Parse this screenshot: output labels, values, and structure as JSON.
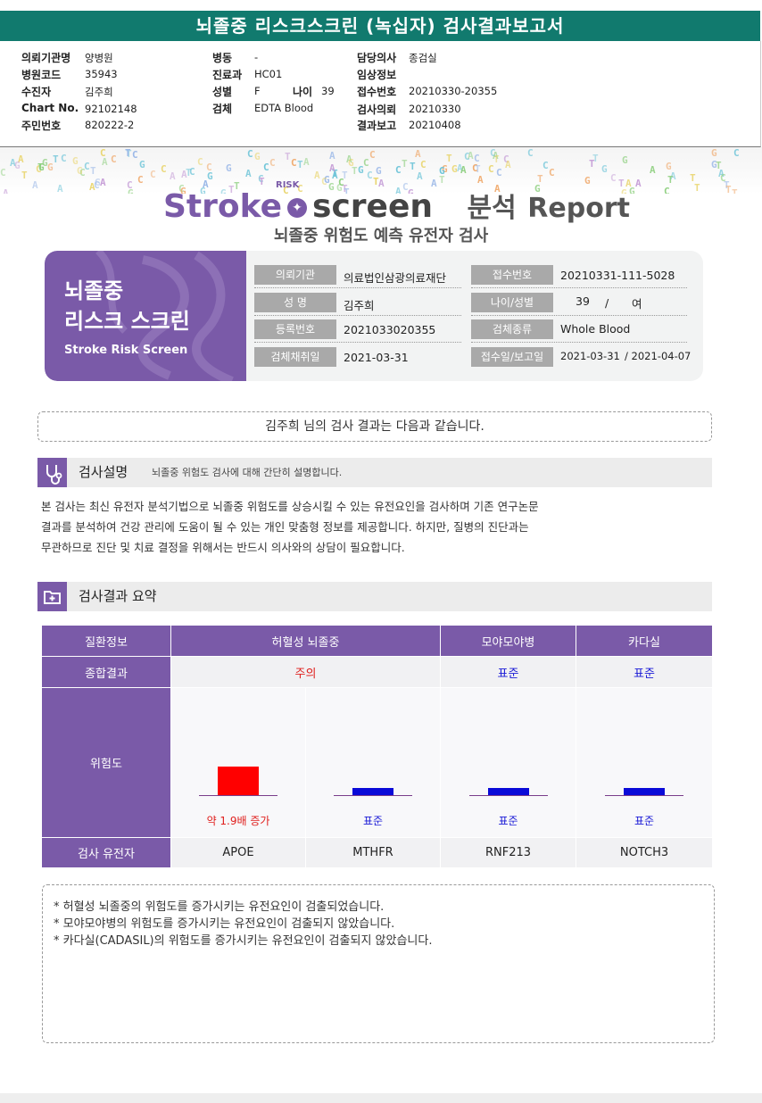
{
  "report_title": "뇌졸중 리스크스크린 (녹십자) 검사결과보고서",
  "header": {
    "col1": [
      {
        "label": "의뢰기관명",
        "value": "양병원"
      },
      {
        "label": "병원코드",
        "value": "35943"
      },
      {
        "label": "수진자",
        "value": "김주희"
      },
      {
        "label": "Chart No.",
        "value": "92102148"
      },
      {
        "label": "주민번호",
        "value": "820222-2"
      }
    ],
    "col2": [
      {
        "label": "병동",
        "value": "-"
      },
      {
        "label": "진료과",
        "value": "HC01"
      },
      {
        "label": "성별",
        "value": "F"
      },
      {
        "label": "검체",
        "value": "EDTA Blood"
      }
    ],
    "age": {
      "label": "나이",
      "value": "39"
    },
    "col3": [
      {
        "label": "담당의사",
        "value": "종검실"
      },
      {
        "label": "임상정보",
        "value": ""
      },
      {
        "label": "접수번호",
        "value": "20210330-20355"
      },
      {
        "label": "검사의뢰",
        "value": "20210330"
      },
      {
        "label": "결과보고",
        "value": "20210408"
      }
    ]
  },
  "brand": {
    "stroke": "Stroke",
    "risk": "RISK",
    "screen": "screen",
    "analysis": "분석",
    "report": "Report",
    "subtitle": "뇌졸중 위험도 예측 유전자 검사"
  },
  "card": {
    "title_line1": "뇌졸중",
    "title_line2": "리스크 스크린",
    "title_en": "Stroke Risk Screen",
    "fields": [
      {
        "label": "의뢰기관",
        "value": "의료법인삼광의료재단"
      },
      {
        "label": "성 명",
        "value": "김주희"
      },
      {
        "label": "등록번호",
        "value": "2021033020355"
      },
      {
        "label": "검체채취일",
        "value": "2021-03-31"
      }
    ],
    "fields_right": [
      {
        "label": "접수번호",
        "value": "20210331-111-5028"
      },
      {
        "label": "나이/성별",
        "value_age": "39",
        "value_sep": "/",
        "value_sex": "여"
      },
      {
        "label": "검체종류",
        "value": "Whole Blood"
      },
      {
        "label": "접수일/보고일",
        "value_a": "2021-03-31",
        "value_b": "/ 2021-04-07"
      }
    ]
  },
  "notice": "김주희 님의 검사 결과는 다음과 같습니다.",
  "section1": {
    "title": "검사설명",
    "desc": "뇌졸중 위험도 검사에 대해 간단히 설명합니다.",
    "body": [
      "본 검사는 최신 유전자 분석기법으로 뇌졸중 위험도를 상승시킬 수 있는 유전요인을 검사하며 기존 연구논문",
      "결과를 분석하여 건강  관리에 도움이 될 수 있는 개인 맞춤형 정보를 제공합니다. 하지만, 질병의 진단과는",
      "무관하므로 진단 및 치료 결정을 위해서는 반드시 의사와의 상담이 필요합니다."
    ]
  },
  "section2": {
    "title": "검사결과 요약"
  },
  "summary": {
    "header_label": "질환정보",
    "diseases": [
      "허혈성 뇌졸중",
      "모야모야병",
      "카다실"
    ],
    "overall_label": "종합결과",
    "overall": [
      {
        "text": "주의",
        "color": "#e0201e"
      },
      {
        "text": "표준",
        "color": "#1a1ad6"
      },
      {
        "text": "표준",
        "color": "#1a1ad6"
      }
    ],
    "risk_label": "위험도",
    "risk_levels": [
      1.9,
      1.0,
      1.0,
      1.0
    ],
    "risk_texts": [
      {
        "text": "약 1.9배 증가",
        "color": "#e0201e"
      },
      {
        "text": "표준",
        "color": "#1a1ad6"
      },
      {
        "text": "표준",
        "color": "#1a1ad6"
      },
      {
        "text": "표준",
        "color": "#1a1ad6"
      }
    ],
    "genes_label": "검사 유전자",
    "genes": [
      "APOE",
      "MTHFR",
      "RNF213",
      "NOTCH3"
    ],
    "colors": {
      "increase": "#ff0000",
      "standard": "#0a0ad8",
      "accent": "#7a5aa8"
    }
  },
  "notes": [
    "* 허혈성 뇌졸중의 위험도를 증가시키는 유전요인이 검출되었습니다.",
    "* 모야모야병의 위험도를 증가시키는 유전요인이 검출되지 않았습니다.",
    "* 카다실(CADASIL)의 위험도를 증가시키는 유전요인이 검출되지 않았습니다."
  ]
}
